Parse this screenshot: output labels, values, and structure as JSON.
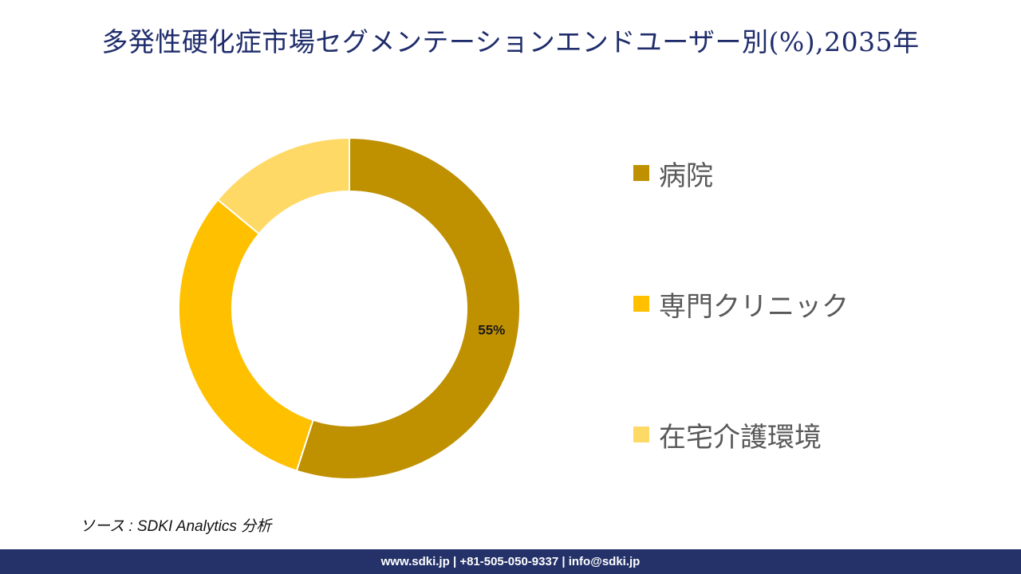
{
  "title": "多発性硬化症市場セグメンテーションエンドユーザー別(%),2035年",
  "chart_data": {
    "type": "pie",
    "variant": "donut",
    "title": "多発性硬化症市場セグメンテーションエンドユーザー別(%),2035年",
    "categories": [
      "病院",
      "専門クリニック",
      "在宅介護環境"
    ],
    "values": [
      55,
      31,
      14
    ],
    "colors": [
      "#bf9000",
      "#ffc000",
      "#ffd966"
    ],
    "data_labels": [
      "55%",
      "",
      ""
    ],
    "legend_position": "right"
  },
  "source": "ソース : SDKI Analytics 分析",
  "footer": {
    "website": "www.sdki.jp",
    "separator": "|",
    "phone": "+81-505-050-9337",
    "email": "info@sdki.jp"
  }
}
